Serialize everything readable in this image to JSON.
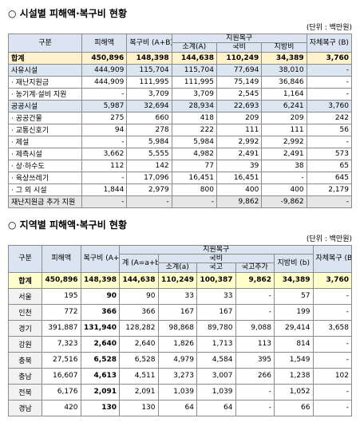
{
  "section1": {
    "title": "○ 시설별 피해액·복구비 현황",
    "unit": "(단위 : 백만원)",
    "header": {
      "category": "구분",
      "damage": "피해액",
      "recovery": "복구비 (A+B)",
      "support": "지원복구",
      "subtotal": "소계(A)",
      "national": "국비",
      "local": "지방비",
      "self": "자체복구 (B)"
    },
    "rows": [
      [
        "합계",
        "450,896",
        "148,398",
        "144,638",
        "110,249",
        "34,389",
        "3,760"
      ],
      [
        "사유시설",
        "444,909",
        "115,704",
        "115,704",
        "77,694",
        "38,010",
        "-"
      ],
      [
        "· 재난지원금",
        "444,909",
        "111,995",
        "111,995",
        "75,149",
        "36,846",
        "-"
      ],
      [
        "· 농기계·설비 지원",
        "-",
        "3,709",
        "3,709",
        "2,545",
        "1,164",
        "-"
      ],
      [
        "공공시설",
        "5,987",
        "32,694",
        "28,934",
        "22,693",
        "6,241",
        "3,760"
      ],
      [
        "· 공공건물",
        "275",
        "660",
        "418",
        "209",
        "209",
        "242"
      ],
      [
        "· 교통신호기",
        "94",
        "278",
        "222",
        "111",
        "111",
        "56"
      ],
      [
        "· 제설",
        "-",
        "5,984",
        "5,984",
        "2,992",
        "2,992",
        "-"
      ],
      [
        "· 제측시설",
        "3,662",
        "5,555",
        "4,982",
        "2,491",
        "2,491",
        "573"
      ],
      [
        "· 상·하수도",
        "112",
        "142",
        "77",
        "39",
        "38",
        "65"
      ],
      [
        "· 육상쓰레기",
        "-",
        "17,096",
        "16,451",
        "16,451",
        "-",
        "645"
      ],
      [
        "· 그 외 시설",
        "1,844",
        "2,979",
        "800",
        "400",
        "400",
        "2,179"
      ],
      [
        "재난지원금 추가 지원",
        "-",
        "-",
        "-",
        "9,862",
        "-9,862",
        "-"
      ]
    ]
  },
  "section2": {
    "title": "○ 지역별 피해액·복구비 현황",
    "unit": "(단위 : 백만원)",
    "header": {
      "category": "구분",
      "damage": "피해액",
      "recovery": "복구비 (A+B)",
      "support": "지원복구",
      "total": "계 (A=a+b)",
      "national": "국비",
      "local": "지방비 (b)",
      "subtotal": "소계(a)",
      "base": "국고",
      "extra": "국고추가",
      "self": "자체복구 (B)"
    },
    "rows": [
      [
        "합계",
        "450,896",
        "148,398",
        "144,638",
        "110,249",
        "100,387",
        "9,862",
        "34,389",
        "3,760"
      ],
      [
        "서울",
        "195",
        "90",
        "90",
        "33",
        "33",
        "-",
        "57",
        "-"
      ],
      [
        "인천",
        "772",
        "366",
        "366",
        "167",
        "167",
        "-",
        "199",
        "-"
      ],
      [
        "경기",
        "391,887",
        "131,940",
        "128,282",
        "98,868",
        "89,780",
        "9,088",
        "29,414",
        "3,658"
      ],
      [
        "강원",
        "7,323",
        "2,640",
        "2,640",
        "1,826",
        "1,713",
        "113",
        "814",
        "-"
      ],
      [
        "충북",
        "27,516",
        "6,528",
        "6,528",
        "4,979",
        "4,584",
        "395",
        "1,549",
        "-"
      ],
      [
        "충남",
        "16,607",
        "4,613",
        "4,511",
        "3,273",
        "3,007",
        "266",
        "1,238",
        "102"
      ],
      [
        "전북",
        "6,176",
        "2,091",
        "2,091",
        "1,039",
        "1,039",
        "-",
        "1,052",
        "-"
      ],
      [
        "경남",
        "420",
        "130",
        "130",
        "64",
        "64",
        "-",
        "66",
        "-"
      ]
    ]
  }
}
